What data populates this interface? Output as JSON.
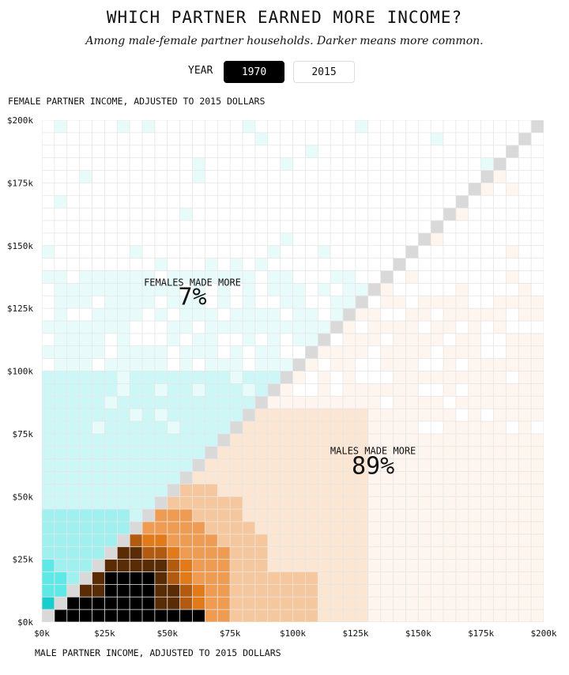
{
  "header": {
    "title": "WHICH PARTNER EARNED MORE INCOME?",
    "subtitle": "Among male-female partner households. Darker means more common."
  },
  "year_toggle": {
    "label": "YEAR",
    "options": [
      "1970",
      "2015"
    ],
    "selected": "1970"
  },
  "colors": {
    "female_scale": [
      "#ffffff",
      "#e8fbfb",
      "#cdf6f6",
      "#9ff0ef",
      "#5ee8e6",
      "#16cfcc"
    ],
    "male_scale": [
      "#ffffff",
      "#fdf5ee",
      "#fbe6d4",
      "#f6c79c",
      "#ef9c52",
      "#e27a1a",
      "#b25a10",
      "#5a2c05",
      "#000000"
    ],
    "equal": "#d9d9d9",
    "grid": "#e6e6e6"
  },
  "chart_data": {
    "type": "heatmap",
    "title": "WHICH PARTNER EARNED MORE INCOME?",
    "subtitle": "Among male-female partner households. Darker means more common.",
    "year": "1970",
    "xlabel": "MALE PARTNER INCOME, ADJUSTED TO 2015 DOLLARS",
    "ylabel": "FEMALE PARTNER INCOME, ADJUSTED TO 2015 DOLLARS",
    "xlim": [
      0,
      200000
    ],
    "ylim": [
      0,
      200000
    ],
    "bin_size": 5000,
    "x_ticks": [
      0,
      25000,
      50000,
      75000,
      100000,
      125000,
      150000,
      175000,
      200000
    ],
    "x_tick_labels": [
      "$0k",
      "$25k",
      "$50k",
      "$75k",
      "$100k",
      "$125k",
      "$150k",
      "$175k",
      "$200k"
    ],
    "y_ticks": [
      0,
      25000,
      50000,
      75000,
      100000,
      125000,
      150000,
      175000,
      200000
    ],
    "y_tick_labels": [
      "$0k",
      "$25k",
      "$50k",
      "$75k",
      "$100k",
      "$125k",
      "$150k",
      "$175k",
      "$200k"
    ],
    "color_encoding": "Darker means more common",
    "annotations": [
      {
        "label": "FEMALES MADE MORE",
        "value": "7%"
      },
      {
        "label": "MALES MADE MORE",
        "value": "89%"
      }
    ],
    "grid": true
  }
}
